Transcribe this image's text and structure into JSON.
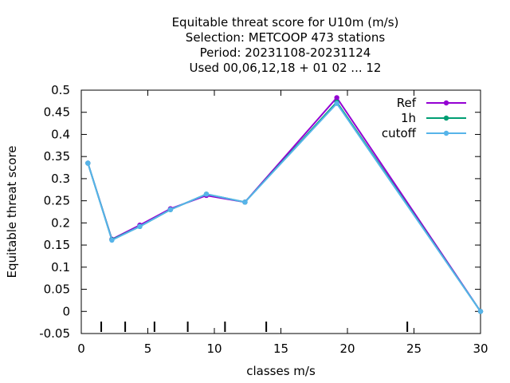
{
  "chart_data": {
    "type": "line",
    "title_lines": [
      "Equitable threat score  for U10m (m/s)",
      "Selection: METCOOP    473 stations",
      "Period: 20231108-20231124",
      "Used  00,06,12,18 + 01 02 ... 12"
    ],
    "xlabel": "classes m/s",
    "ylabel": "Equitable threat score",
    "xlim": [
      0,
      30
    ],
    "ylim": [
      -0.05,
      0.5
    ],
    "xticks": [
      0,
      5,
      10,
      15,
      20,
      25,
      30
    ],
    "yticks": [
      -0.05,
      0,
      0.05,
      0.1,
      0.15,
      0.2,
      0.25,
      0.3,
      0.35,
      0.4,
      0.45,
      0.5
    ],
    "xtick_labels": [
      "0",
      "5",
      "10",
      "15",
      "20",
      "25",
      "30"
    ],
    "ytick_labels": [
      "-0.05",
      "0",
      "0.05",
      "0.1",
      "0.15",
      "0.2",
      "0.25",
      "0.3",
      "0.35",
      "0.4",
      "0.45",
      "0.5"
    ],
    "class_boundaries": [
      1.5,
      3.3,
      5.5,
      8.0,
      10.8,
      13.9,
      24.5
    ],
    "grid": false,
    "legend_position": "top-right",
    "x": [
      0.5,
      2.3,
      4.4,
      6.7,
      9.4,
      12.3,
      19.2,
      30.0
    ],
    "series": [
      {
        "name": "Ref",
        "color": "#9400d3",
        "values": [
          0.335,
          0.163,
          0.195,
          0.232,
          0.262,
          0.247,
          0.483,
          0.0
        ]
      },
      {
        "name": "1h",
        "color": "#009e73",
        "values": [
          0.335,
          0.162,
          0.192,
          0.23,
          0.265,
          0.247,
          0.473,
          0.0
        ]
      },
      {
        "name": "cutoff",
        "color": "#56b4e9",
        "values": [
          0.335,
          0.161,
          0.192,
          0.23,
          0.265,
          0.247,
          0.47,
          0.0
        ]
      }
    ]
  }
}
